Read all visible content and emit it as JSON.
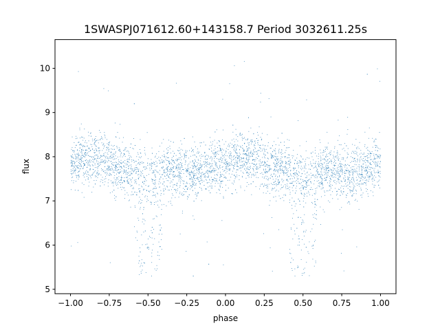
{
  "chart_data": {
    "type": "scatter",
    "title": "1SWASPJ071612.60+143158.7 Period 3032611.25s",
    "xlabel": "phase",
    "ylabel": "flux",
    "xlim": [
      -1.1,
      1.1
    ],
    "ylim": [
      4.9,
      10.65
    ],
    "xticks": [
      {
        "value": -1.0,
        "label": "−1.00"
      },
      {
        "value": -0.75,
        "label": "−0.75"
      },
      {
        "value": -0.5,
        "label": "−0.50"
      },
      {
        "value": -0.25,
        "label": "−0.25"
      },
      {
        "value": 0.0,
        "label": "0.00"
      },
      {
        "value": 0.25,
        "label": "0.25"
      },
      {
        "value": 0.5,
        "label": "0.50"
      },
      {
        "value": 0.75,
        "label": "0.75"
      },
      {
        "value": 1.0,
        "label": "1.00"
      }
    ],
    "yticks": [
      {
        "value": 5,
        "label": "5"
      },
      {
        "value": 6,
        "label": "6"
      },
      {
        "value": 7,
        "label": "7"
      },
      {
        "value": 8,
        "label": "8"
      },
      {
        "value": 9,
        "label": "9"
      },
      {
        "value": 10,
        "label": "10"
      }
    ],
    "grid": false,
    "marker_color": "#1f77b4",
    "series": [
      {
        "points_phase_range": [
          -1.0,
          1.0
        ],
        "baseline_flux": [
          [
            -1.0,
            7.85
          ],
          [
            -0.9,
            7.95
          ],
          [
            -0.8,
            7.95
          ],
          [
            -0.7,
            7.75
          ],
          [
            -0.6,
            7.65
          ],
          [
            -0.5,
            7.55
          ],
          [
            -0.4,
            7.65
          ],
          [
            -0.3,
            7.7
          ],
          [
            -0.2,
            7.6
          ],
          [
            -0.1,
            7.75
          ],
          [
            0.0,
            7.85
          ],
          [
            0.1,
            7.95
          ],
          [
            0.2,
            7.95
          ],
          [
            0.3,
            7.75
          ],
          [
            0.4,
            7.65
          ],
          [
            0.5,
            7.55
          ],
          [
            0.6,
            7.65
          ],
          [
            0.7,
            7.7
          ],
          [
            0.8,
            7.6
          ],
          [
            0.9,
            7.75
          ],
          [
            1.0,
            7.85
          ]
        ],
        "eclipse_minima": [
          {
            "phase": -0.5,
            "min_flux": 5.3
          },
          {
            "phase": 0.5,
            "min_flux": 5.3
          }
        ]
      }
    ]
  }
}
